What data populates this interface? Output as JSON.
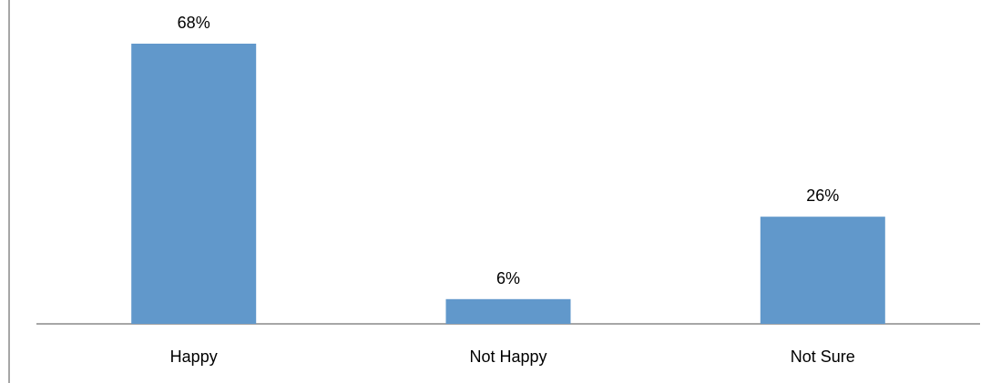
{
  "chart_data": {
    "type": "bar",
    "categories": [
      "Happy",
      "Not Happy",
      "Not Sure"
    ],
    "values": [
      68,
      6,
      26
    ],
    "data_labels": [
      "68%",
      "6%",
      "26%"
    ],
    "ylim": [
      0,
      68
    ],
    "grid": false,
    "legend": "none",
    "bar_color": "#6198CB",
    "axis_color": "#888888"
  }
}
